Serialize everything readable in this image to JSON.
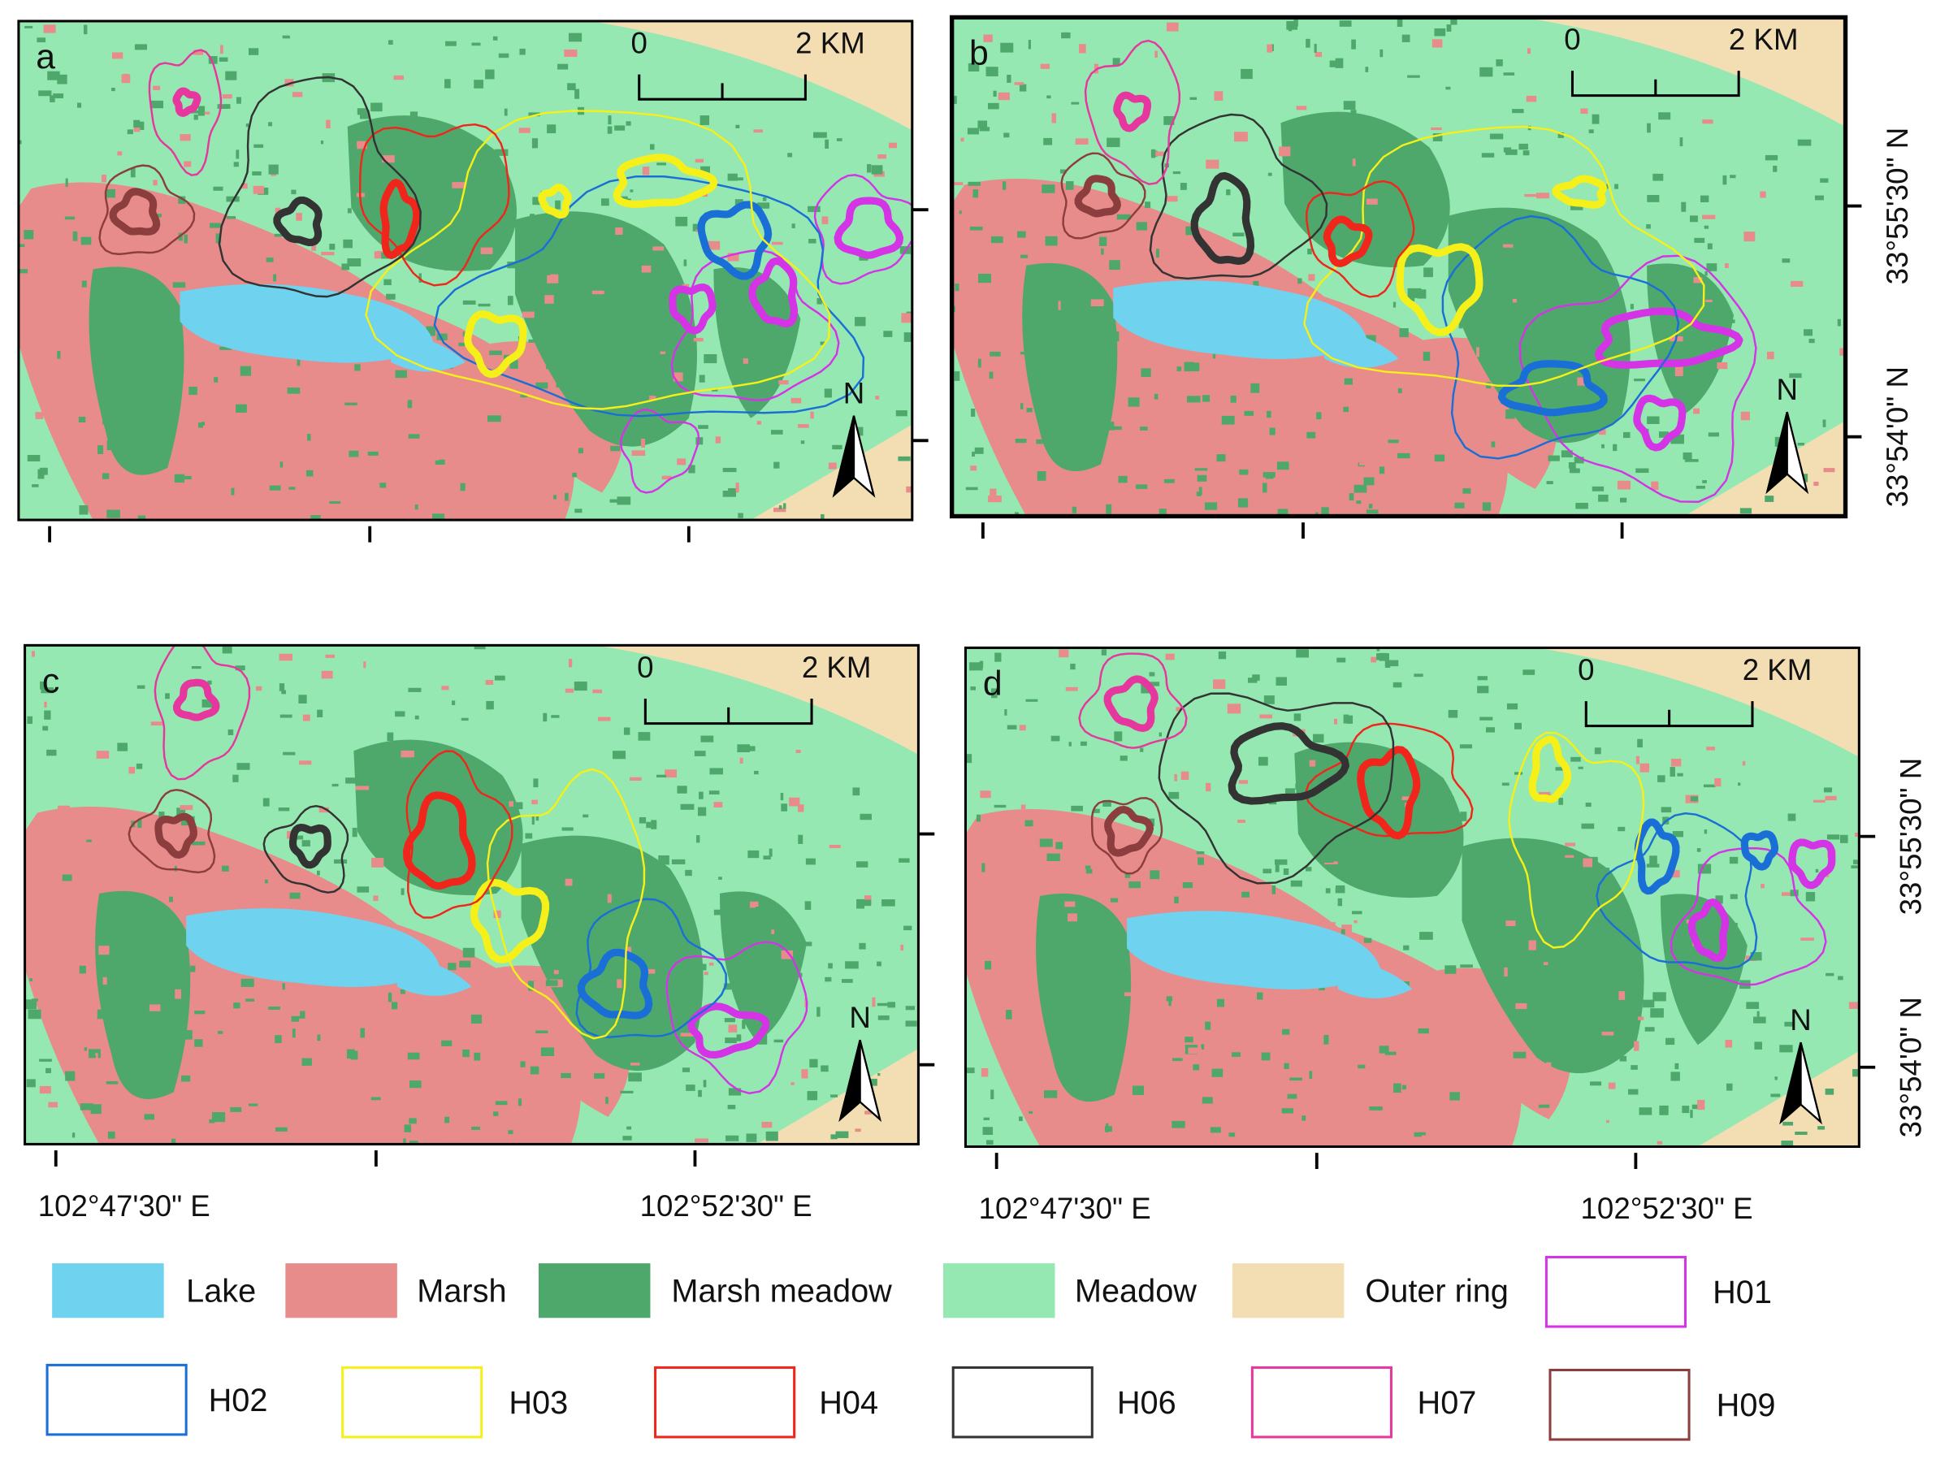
{
  "panels": [
    {
      "label": "a",
      "scale_start": "0",
      "scale_end": "2 KM",
      "north": "N"
    },
    {
      "label": "b",
      "scale_start": "0",
      "scale_end": "2 KM",
      "north": "N"
    },
    {
      "label": "c",
      "scale_start": "0",
      "scale_end": "2 KM",
      "north": "N"
    },
    {
      "label": "d",
      "scale_start": "0",
      "scale_end": "2 KM",
      "north": "N"
    }
  ],
  "longitude_labels": [
    "102°47'30\" E",
    "102°52'30\" E"
  ],
  "latitude_labels": [
    "33°55'30\" N",
    "33°54'0\" N"
  ],
  "land_cover": [
    {
      "name": "Lake",
      "color": "#6fd2ef"
    },
    {
      "name": "Marsh",
      "color": "#e88b8b"
    },
    {
      "name": "Marsh meadow",
      "color": "#4ea86b"
    },
    {
      "name": "Meadow",
      "color": "#95e8b1"
    },
    {
      "name": "Outer ring",
      "color": "#f3deb4"
    }
  ],
  "home_ranges": [
    {
      "name": "H01",
      "color": "#d533e6"
    },
    {
      "name": "H02",
      "color": "#1a6fd6"
    },
    {
      "name": "H03",
      "color": "#f5ef1a"
    },
    {
      "name": "H04",
      "color": "#f0261c"
    },
    {
      "name": "H06",
      "color": "#333333"
    },
    {
      "name": "H07",
      "color": "#e6379e"
    },
    {
      "name": "H09",
      "color": "#8c3e3e"
    }
  ]
}
